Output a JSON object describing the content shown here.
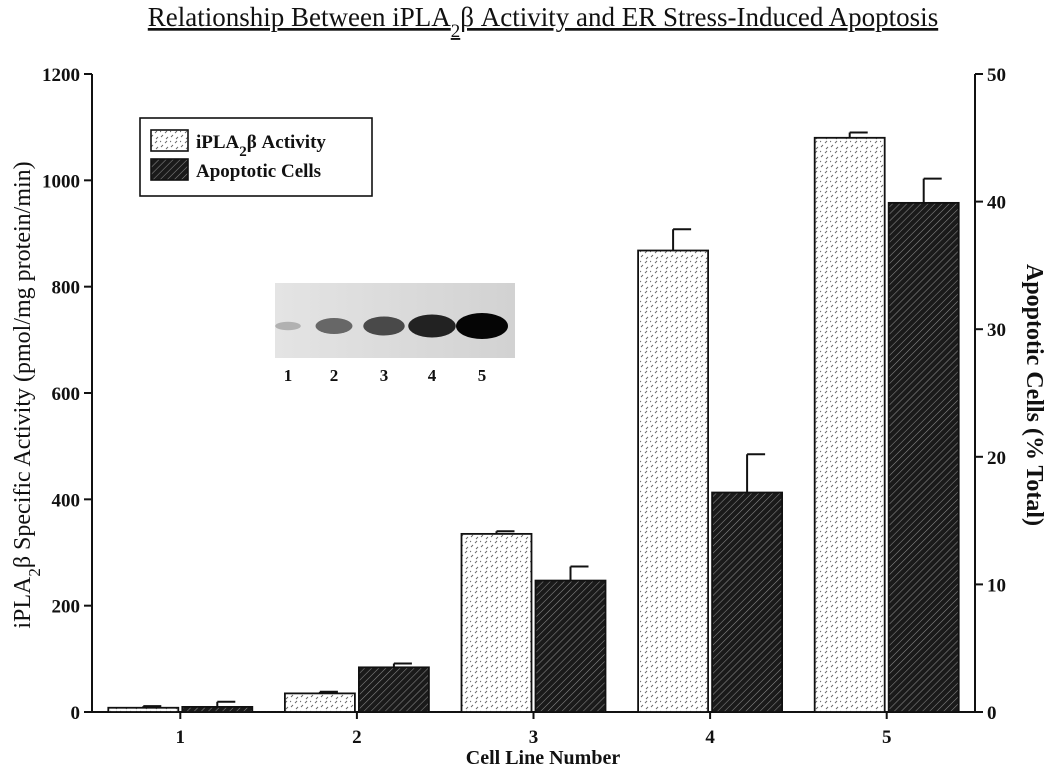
{
  "chart_data": {
    "type": "bar",
    "title": "Relationship Between iPLA",
    "title_sub": "2",
    "title_rest": "β Activity and ER Stress-Induced Apoptosis",
    "xlabel": "Cell Line Number",
    "ylabel_left_pre": "iPLA",
    "ylabel_left_sub": "2",
    "ylabel_left_post": "β Specific Activity (pmol/mg protein/min)",
    "ylabel_right": "Apoptotic Cells (% Total)",
    "categories": [
      "1",
      "2",
      "3",
      "4",
      "5"
    ],
    "y_left_ticks": [
      "0",
      "200",
      "400",
      "600",
      "800",
      "1000",
      "1200"
    ],
    "y_right_ticks": [
      "0",
      "10",
      "20",
      "30",
      "40",
      "50"
    ],
    "ylim_left": [
      0,
      1200
    ],
    "ylim_right": [
      0,
      50
    ],
    "series": [
      {
        "name_pre": "iPLA",
        "name_sub": "2",
        "name_post": "β Activity",
        "axis": "left",
        "values": [
          8,
          35,
          335,
          868,
          1080
        ],
        "errors": [
          3,
          3,
          5,
          40,
          10
        ]
      },
      {
        "name": "Apoptotic Cells",
        "axis": "right",
        "values": [
          0.4,
          3.5,
          10.3,
          17.2,
          39.9
        ],
        "errors": [
          0.4,
          0.3,
          1.1,
          3.0,
          1.9
        ]
      }
    ],
    "legend_position": "top-left",
    "inset": {
      "lane_labels": [
        "1",
        "2",
        "3",
        "4",
        "5"
      ],
      "band_intensity": [
        0.12,
        0.5,
        0.65,
        0.85,
        1.0
      ]
    }
  }
}
